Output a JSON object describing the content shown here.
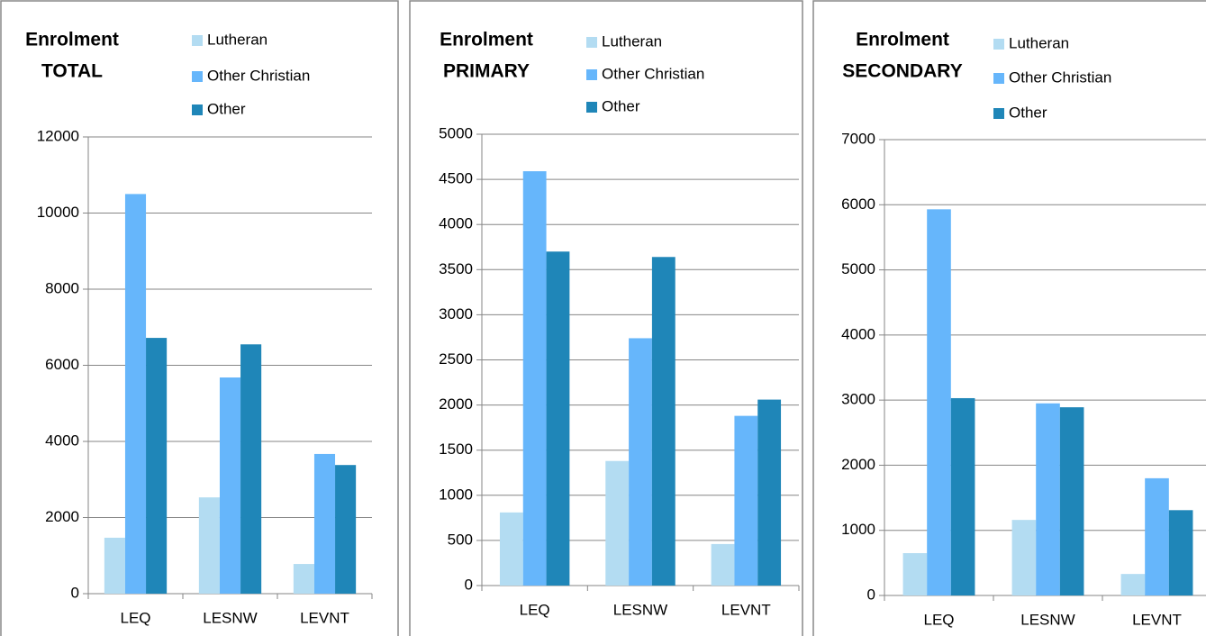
{
  "chart_data": [
    {
      "type": "bar",
      "title": "Enrolment",
      "subtitle": "TOTAL",
      "categories": [
        "LEQ",
        "LESNW",
        "LEVNT"
      ],
      "series": [
        {
          "name": "Lutheran",
          "color": "#b3dcf2",
          "values": [
            1470,
            2530,
            780
          ]
        },
        {
          "name": "Other Christian",
          "color": "#66b6fb",
          "values": [
            10500,
            5680,
            3670
          ]
        },
        {
          "name": "Other",
          "color": "#1f86b8",
          "values": [
            6720,
            6550,
            3380
          ]
        }
      ],
      "ylim": [
        0,
        12000
      ],
      "yticks": [
        0,
        2000,
        4000,
        6000,
        8000,
        10000,
        12000
      ],
      "grid": true,
      "legend": "top-right"
    },
    {
      "type": "bar",
      "title": "Enrolment",
      "subtitle": "PRIMARY",
      "categories": [
        "LEQ",
        "LESNW",
        "LEVNT"
      ],
      "series": [
        {
          "name": "Lutheran",
          "color": "#b3dcf2",
          "values": [
            810,
            1380,
            460
          ]
        },
        {
          "name": "Other Christian",
          "color": "#66b6fb",
          "values": [
            4590,
            2740,
            1880
          ]
        },
        {
          "name": "Other",
          "color": "#1f86b8",
          "values": [
            3700,
            3640,
            2060
          ]
        }
      ],
      "ylim": [
        0,
        5000
      ],
      "yticks": [
        0,
        500,
        1000,
        1500,
        2000,
        2500,
        3000,
        3500,
        4000,
        4500,
        5000
      ],
      "grid": true,
      "legend": "top-right"
    },
    {
      "type": "bar",
      "title": "Enrolment",
      "subtitle": "SECONDARY",
      "categories": [
        "LEQ",
        "LESNW",
        "LEVNT"
      ],
      "series": [
        {
          "name": "Lutheran",
          "color": "#b3dcf2",
          "values": [
            650,
            1160,
            330
          ]
        },
        {
          "name": "Other Christian",
          "color": "#66b6fb",
          "values": [
            5930,
            2950,
            1800
          ]
        },
        {
          "name": "Other",
          "color": "#1f86b8",
          "values": [
            3030,
            2890,
            1310
          ]
        }
      ],
      "ylim": [
        0,
        7000
      ],
      "yticks": [
        0,
        1000,
        2000,
        3000,
        4000,
        5000,
        6000,
        7000
      ],
      "grid": true,
      "legend": "top-right"
    }
  ]
}
